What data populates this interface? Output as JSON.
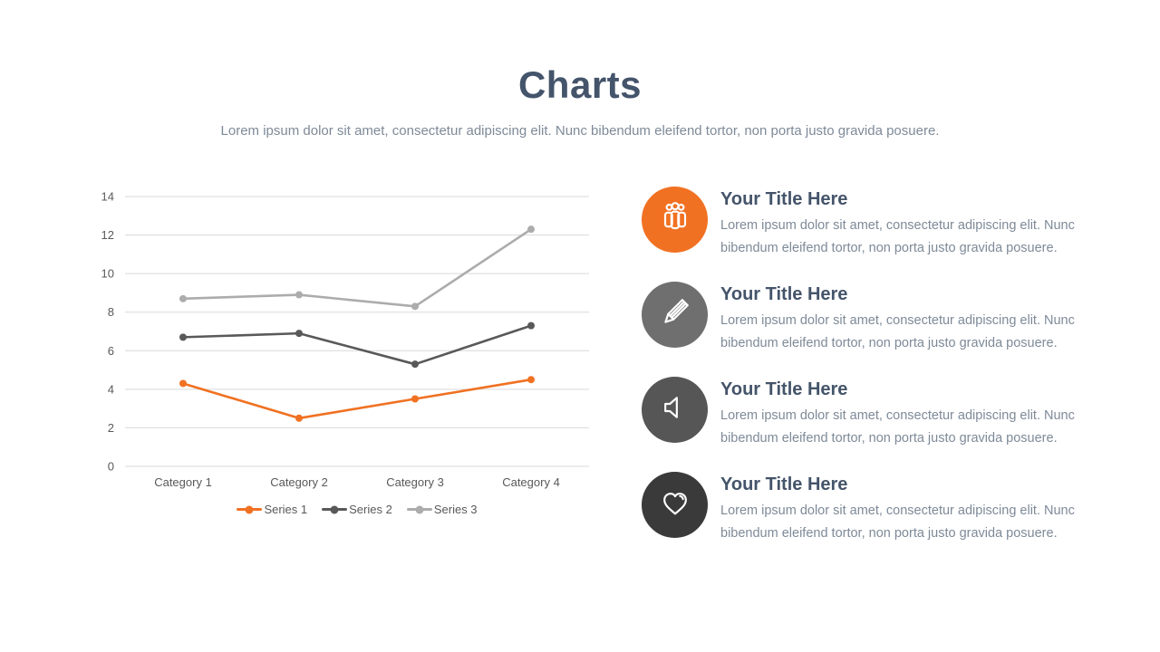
{
  "slide": {
    "title": "Charts",
    "subtitle": "Lorem ipsum dolor sit amet, consectetur adipiscing elit. Nunc bibendum eleifend tortor, non porta justo gravida posuere."
  },
  "chart_data": {
    "type": "line",
    "categories": [
      "Category 1",
      "Category 2",
      "Category 3",
      "Category 4"
    ],
    "series": [
      {
        "name": "Series 1",
        "color": "#F07122",
        "values": [
          4.3,
          2.5,
          3.5,
          4.5
        ]
      },
      {
        "name": "Series 2",
        "color": "#595959",
        "values": [
          6.7,
          6.9,
          5.3,
          7.3
        ]
      },
      {
        "name": "Series 3",
        "color": "#ACACAC",
        "values": [
          8.7,
          8.9,
          8.3,
          12.3
        ]
      }
    ],
    "ylim": [
      0,
      14
    ],
    "yticks": [
      0,
      2,
      4,
      6,
      8,
      10,
      12,
      14
    ],
    "xlabel": "",
    "ylabel": "",
    "title": "",
    "grid": true,
    "legend_position": "bottom",
    "marker": "circle"
  },
  "features": [
    {
      "title": "Your Title Here",
      "description": "Lorem ipsum dolor sit amet, consectetur adipiscing elit. Nunc bibendum eleifend tortor, non porta justo gravida posuere.",
      "icon": "people-group-icon",
      "circle_color": "#F17122"
    },
    {
      "title": "Your Title Here",
      "description": "Lorem ipsum dolor sit amet, consectetur adipiscing elit. Nunc bibendum eleifend tortor, non porta justo gravida posuere.",
      "icon": "pencil-icon",
      "circle_color": "#6F6F6F"
    },
    {
      "title": "Your Title Here",
      "description": "Lorem ipsum dolor sit amet, consectetur adipiscing elit. Nunc bibendum eleifend tortor, non porta justo gravida posuere.",
      "icon": "speaker-icon",
      "circle_color": "#565656"
    },
    {
      "title": "Your Title Here",
      "description": "Lorem ipsum dolor sit amet, consectetur adipiscing elit. Nunc bibendum eleifend tortor, non porta justo gravida posuere.",
      "icon": "heart-icon",
      "circle_color": "#3A3A3A"
    }
  ],
  "colors": {
    "heading": "#44546A",
    "body_text": "#7E8A98",
    "axis_text": "#595959",
    "gridline": "#D9D9D9",
    "background": "#FFFFFF"
  }
}
